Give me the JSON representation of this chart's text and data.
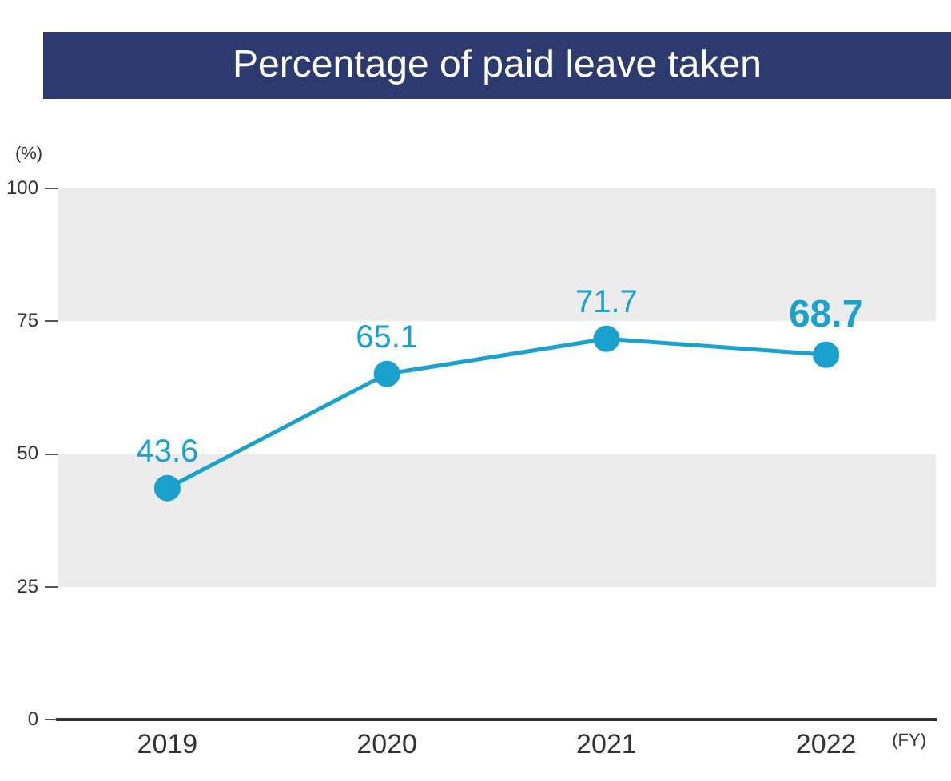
{
  "chart_data": {
    "type": "line",
    "title": "Percentage of paid leave taken",
    "ylabel": "(%)",
    "xlabel": "(FY)",
    "categories": [
      "2019",
      "2020",
      "2021",
      "2022"
    ],
    "series": [
      {
        "color": "#1ba1cd",
        "values": [
          43.6,
          65.1,
          71.7,
          68.7
        ]
      }
    ],
    "ylim": [
      0,
      100
    ],
    "yticks": [
      0,
      25,
      50,
      75,
      100
    ],
    "bands": [
      {
        "axis": "y",
        "from": 75,
        "to": 100,
        "color": "#ececec"
      },
      {
        "axis": "y",
        "from": 25,
        "to": 50,
        "color": "#ececec"
      }
    ],
    "data_labels": true,
    "grid": false,
    "legend": false,
    "marker": "circle",
    "line_style": "solid"
  }
}
